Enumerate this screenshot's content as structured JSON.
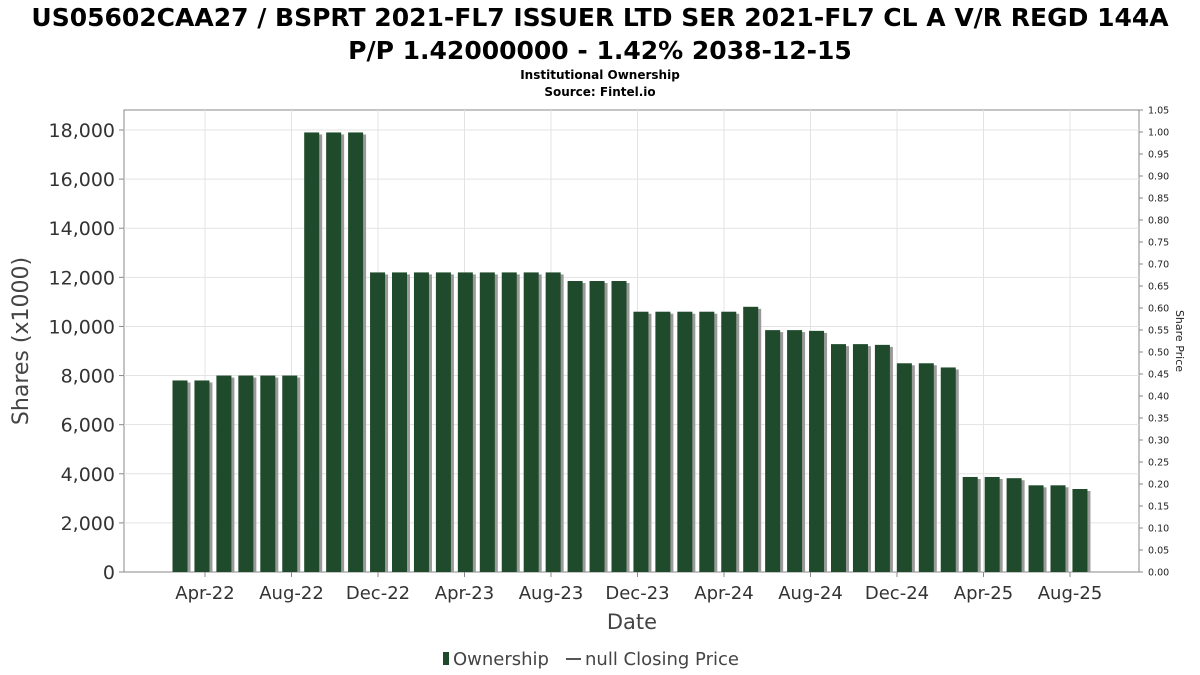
{
  "chart_data": {
    "type": "bar",
    "title_line1": "US05602CAA27 / BSPRT 2021-FL7 ISSUER LTD SER 2021-FL7 CL A V/R REGD 144A",
    "title_line2": "P/P 1.42000000 - 1.42% 2038-12-15",
    "subtitle_line1": "Institutional Ownership",
    "subtitle_line2": "Source: Fintel.io",
    "xlabel": "Date",
    "ylabel": "Shares (x1000)",
    "y2label": "Share Price",
    "ylim": [
      0,
      18800
    ],
    "y_ticks": [
      0,
      2000,
      4000,
      6000,
      8000,
      10000,
      12000,
      14000,
      16000,
      18000
    ],
    "y_tick_labels": [
      "0",
      "2,000",
      "4,000",
      "6,000",
      "8,000",
      "10,000",
      "12,000",
      "14,000",
      "16,000",
      "18,000"
    ],
    "y2lim": [
      0,
      1.05
    ],
    "y2_ticks": [
      0,
      0.05,
      0.1,
      0.15,
      0.2,
      0.25,
      0.3,
      0.35,
      0.4,
      0.45,
      0.5,
      0.55,
      0.6,
      0.65,
      0.7,
      0.75,
      0.8,
      0.85,
      0.9,
      0.95,
      1.0,
      1.05
    ],
    "y2_tick_labels": [
      "0.00",
      "0.05",
      "0.10",
      "0.15",
      "0.20",
      "0.25",
      "0.30",
      "0.35",
      "0.40",
      "0.45",
      "0.50",
      "0.55",
      "0.60",
      "0.65",
      "0.70",
      "0.75",
      "0.80",
      "0.85",
      "0.90",
      "0.95",
      "1.00",
      "1.05"
    ],
    "x_tick_labels": [
      "Apr-22",
      "Aug-22",
      "Dec-22",
      "Apr-23",
      "Aug-23",
      "Dec-23",
      "Apr-24",
      "Aug-24",
      "Dec-24",
      "Apr-25",
      "Aug-25"
    ],
    "grid": true,
    "legend_position": "bottom",
    "series": [
      {
        "name": "Ownership",
        "color": "#1f4a2b",
        "values": [
          7800,
          7800,
          8000,
          8000,
          8000,
          8000,
          17900,
          17900,
          17900,
          12200,
          12200,
          12200,
          12200,
          12200,
          12200,
          12200,
          12200,
          12200,
          11850,
          11850,
          11850,
          10600,
          10600,
          10600,
          10600,
          10600,
          10800,
          9850,
          9850,
          9820,
          9280,
          9280,
          9250,
          8500,
          8500,
          8330,
          3870,
          3870,
          3820,
          3530,
          3530,
          3380
        ]
      }
    ],
    "legend": [
      {
        "label": "Ownership",
        "marker": "bar",
        "color": "#1f4a2b"
      },
      {
        "label": "null Closing Price",
        "marker": "line",
        "color": "#555555"
      }
    ]
  }
}
